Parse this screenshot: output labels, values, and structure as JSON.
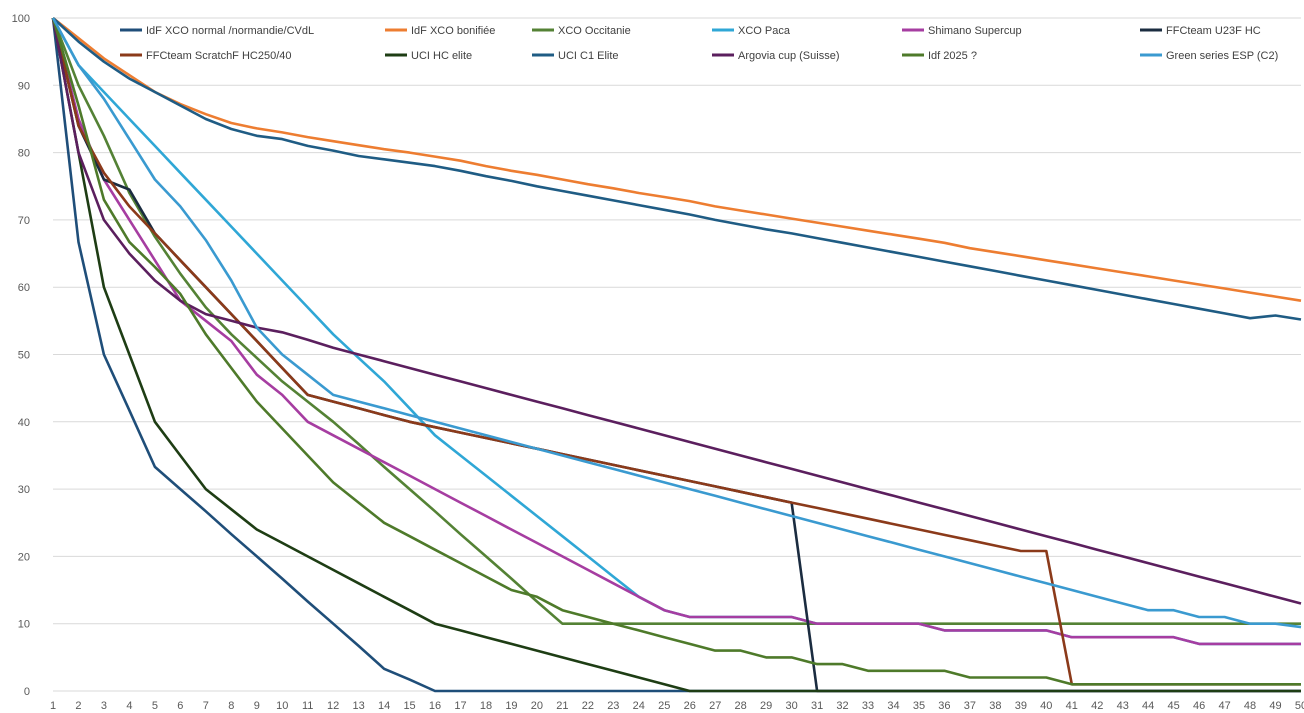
{
  "chart_data": {
    "type": "line",
    "title": "",
    "xlabel": "",
    "ylabel": "",
    "x": [
      1,
      2,
      3,
      4,
      5,
      6,
      7,
      8,
      9,
      10,
      11,
      12,
      13,
      14,
      15,
      16,
      17,
      18,
      19,
      20,
      21,
      22,
      23,
      24,
      25,
      26,
      27,
      28,
      29,
      30,
      31,
      32,
      33,
      34,
      35,
      36,
      37,
      38,
      39,
      40,
      41,
      42,
      43,
      44,
      45,
      46,
      47,
      48,
      49,
      50
    ],
    "xlim": [
      1,
      50
    ],
    "ylim": [
      0,
      100
    ],
    "y_ticks": [
      0,
      10,
      20,
      30,
      40,
      50,
      60,
      70,
      80,
      90,
      100
    ],
    "x_tick_labels": [
      "1",
      "2",
      "3",
      "4",
      "5",
      "6",
      "7",
      "8",
      "9",
      "10",
      "11",
      "12",
      "13",
      "14",
      "15",
      "16",
      "17",
      "18",
      "19",
      "20",
      "21",
      "22",
      "23",
      "24",
      "25",
      "26",
      "27",
      "28",
      "29",
      "30",
      "31",
      "32",
      "33",
      "34",
      "35",
      "36",
      "37",
      "38",
      "39",
      "40",
      "41",
      "42",
      "43",
      "44",
      "45",
      "46",
      "47",
      "48",
      "49",
      "50"
    ],
    "grid": "horizontal",
    "legend_position": "top",
    "series": [
      {
        "name": "IdF XCO normal /normandie/CVdL",
        "color": "#1f4e79",
        "values": [
          100,
          66.7,
          50,
          41.7,
          33.3,
          30,
          26.7,
          23.3,
          20,
          16.7,
          13.3,
          10,
          6.7,
          3.3,
          1.7,
          0,
          0,
          0,
          0,
          0,
          0,
          0,
          0,
          0,
          0,
          0,
          0,
          0,
          0,
          0,
          0,
          0,
          0,
          0,
          0,
          0,
          0,
          0,
          0,
          0,
          0,
          0,
          0,
          0,
          0,
          0,
          0,
          0,
          0,
          0
        ]
      },
      {
        "name": "IdF XCO bonifiée",
        "color": "#ed7d31",
        "values": [
          100,
          97,
          94,
          91.5,
          89,
          87.2,
          85.7,
          84.4,
          83.6,
          83,
          82.3,
          81.7,
          81.1,
          80.5,
          80,
          79.4,
          78.8,
          78,
          77.3,
          76.7,
          76,
          75.3,
          74.7,
          74,
          73.4,
          72.8,
          72,
          71.4,
          70.8,
          70.2,
          69.6,
          69,
          68.4,
          67.8,
          67.2,
          66.6,
          65.8,
          65.2,
          64.6,
          64,
          63.4,
          62.8,
          62.2,
          61.6,
          61,
          60.4,
          59.8,
          59.2,
          58.6,
          58
        ]
      },
      {
        "name": "XCO Occitanie",
        "color": "#548235",
        "values": [
          100,
          90,
          82.5,
          74,
          67.5,
          62,
          57,
          53,
          49.5,
          46,
          43,
          40,
          36.7,
          33.3,
          30,
          26.7,
          23.3,
          20,
          16.7,
          13.3,
          10,
          10,
          10,
          10,
          10,
          10,
          10,
          10,
          10,
          10,
          10,
          10,
          10,
          10,
          10,
          10,
          10,
          10,
          10,
          10,
          10,
          10,
          10,
          10,
          10,
          10,
          10,
          10,
          10,
          10
        ]
      },
      {
        "name": "XCO Paca",
        "color": "#2fa7d6",
        "values": [
          100,
          93,
          89,
          85,
          81,
          77,
          73,
          69,
          65,
          61,
          57,
          53,
          49.5,
          46,
          42,
          38,
          35,
          32,
          29,
          26,
          23,
          20,
          17,
          14,
          12,
          11,
          11,
          11,
          11,
          11,
          10,
          10,
          10,
          10,
          10,
          9,
          9,
          9,
          9,
          9,
          8,
          8,
          8,
          8,
          8,
          7,
          7,
          7,
          7,
          7
        ]
      },
      {
        "name": "Shimano Supercup",
        "color": "#a63da1",
        "values": [
          100,
          85,
          76,
          70,
          64,
          58,
          55,
          52,
          47,
          44,
          40,
          38,
          36,
          34,
          32,
          30,
          28,
          26,
          24,
          22,
          20,
          18,
          16,
          14,
          12,
          11,
          11,
          11,
          11,
          11,
          10,
          10,
          10,
          10,
          10,
          9,
          9,
          9,
          9,
          9,
          8,
          8,
          8,
          8,
          8,
          7,
          7,
          7,
          7,
          7
        ]
      },
      {
        "name": "FFCteam U23F HC",
        "color": "#1b2c40",
        "values": [
          100,
          84,
          76,
          74.5,
          68,
          64,
          60,
          56,
          52,
          48,
          44,
          43,
          42,
          41,
          40,
          39.2,
          38.4,
          37.6,
          36.8,
          36,
          35.2,
          34.4,
          33.6,
          32.8,
          32,
          31.2,
          30.4,
          29.6,
          28.8,
          28,
          0,
          0,
          0,
          0,
          0,
          0,
          0,
          0,
          0,
          0,
          0,
          0,
          0,
          0,
          0,
          0,
          0,
          0,
          0,
          0
        ]
      },
      {
        "name": "FFCteam ScratchF  HC250/40",
        "color": "#8b3a1a",
        "values": [
          100,
          84,
          77,
          72,
          68,
          64,
          60,
          56,
          52,
          48,
          44,
          43,
          42,
          41,
          40,
          39.2,
          38.4,
          37.6,
          36.8,
          36,
          35.2,
          34.4,
          33.6,
          32.8,
          32,
          31.2,
          30.4,
          29.6,
          28.8,
          28,
          27.2,
          26.4,
          25.6,
          24.8,
          24,
          23.2,
          22.4,
          21.6,
          20.8,
          20.8,
          1,
          1,
          1,
          1,
          1,
          1,
          1,
          1,
          1,
          1
        ]
      },
      {
        "name": "UCI HC elite",
        "color": "#1e3d14",
        "values": [
          100,
          80,
          60,
          50,
          40,
          35,
          30,
          27,
          24,
          22,
          20,
          18,
          16,
          14,
          12,
          10,
          9,
          8,
          7,
          6,
          5,
          4,
          3,
          2,
          1,
          0,
          0,
          0,
          0,
          0,
          0,
          0,
          0,
          0,
          0,
          0,
          0,
          0,
          0,
          0,
          0,
          0,
          0,
          0,
          0,
          0,
          0,
          0,
          0,
          0
        ]
      },
      {
        "name": "UCI C1 Elite",
        "color": "#1f5c84",
        "values": [
          100,
          96.5,
          93.5,
          91,
          89,
          87,
          85,
          83.5,
          82.5,
          82,
          81,
          80.3,
          79.5,
          79,
          78.5,
          78,
          77.3,
          76.5,
          75.8,
          75,
          74.3,
          73.6,
          72.9,
          72.2,
          71.5,
          70.8,
          70,
          69.3,
          68.6,
          68,
          67.3,
          66.6,
          65.9,
          65.2,
          64.5,
          63.8,
          63.1,
          62.4,
          61.7,
          61,
          60.3,
          59.6,
          58.9,
          58.2,
          57.5,
          56.8,
          56.1,
          55.4,
          55.8,
          55.2
        ]
      },
      {
        "name": "Argovia cup (Suisse)",
        "color": "#5b1f5e",
        "values": [
          100,
          80,
          70,
          65,
          61,
          58,
          56,
          55,
          54,
          53.3,
          52.2,
          51,
          50,
          49,
          48,
          47,
          46,
          45,
          44,
          43,
          42,
          41,
          40,
          39,
          38,
          37,
          36,
          35,
          34,
          33,
          32,
          31,
          30,
          29,
          28,
          27,
          26,
          25,
          24,
          23,
          22,
          21,
          20,
          19,
          18,
          17,
          16,
          15,
          14,
          13
        ]
      },
      {
        "name": "Idf 2025 ?",
        "color": "#4e7a2a",
        "values": [
          100,
          87,
          73,
          66.7,
          63,
          59,
          53,
          48,
          43,
          39,
          35,
          31,
          28,
          25,
          23,
          21,
          19,
          17,
          15,
          14,
          12,
          11,
          10,
          9,
          8,
          7,
          6,
          6,
          5,
          5,
          4,
          4,
          3,
          3,
          3,
          3,
          2,
          2,
          2,
          2,
          1,
          1,
          1,
          1,
          1,
          1,
          1,
          1,
          1,
          1
        ]
      },
      {
        "name": "Green series ESP (C2)",
        "color": "#3a9ad0",
        "values": [
          100,
          93,
          88,
          82,
          76,
          72,
          67,
          61,
          54,
          50,
          47,
          44,
          43,
          42,
          41,
          40,
          39,
          38,
          37,
          36,
          35,
          34,
          33,
          32,
          31,
          30,
          29,
          28,
          27,
          26,
          25,
          24,
          23,
          22,
          21,
          20,
          19,
          18,
          17,
          16,
          15,
          14,
          13,
          12,
          12,
          11,
          11,
          10,
          10,
          9.5
        ]
      }
    ]
  }
}
